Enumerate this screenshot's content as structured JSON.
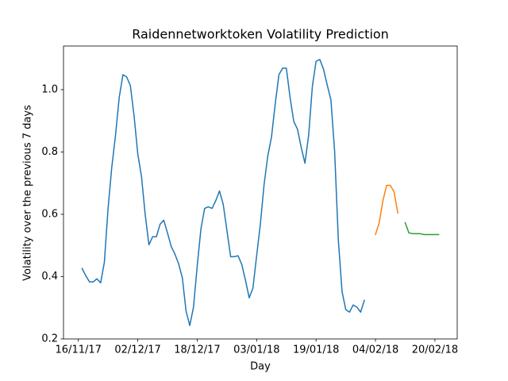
{
  "chart_data": {
    "type": "line",
    "title": "Raidennetworktoken Volatility Prediction",
    "x_label": "Day",
    "y_label": "Volatility over the previous 7 days",
    "xlim": [
      "2017-11-12",
      "2018-02-26"
    ],
    "xticks": [
      {
        "value": "2017-11-16",
        "label": "16/11/17"
      },
      {
        "value": "2017-12-02",
        "label": "02/12/17"
      },
      {
        "value": "2017-12-18",
        "label": "18/12/17"
      },
      {
        "value": "2018-01-03",
        "label": "03/01/18"
      },
      {
        "value": "2018-01-19",
        "label": "19/01/18"
      },
      {
        "value": "2018-02-04",
        "label": "04/02/18"
      },
      {
        "value": "2018-02-20",
        "label": "20/02/18"
      }
    ],
    "ylim": [
      0.2,
      1.14
    ],
    "yticks": [
      0.2,
      0.4,
      0.6,
      0.8,
      {
        "value": 1,
        "label": "1.0"
      }
    ],
    "grid": false,
    "series": [
      {
        "color": "#1f77b4",
        "x": [
          "2017-11-17",
          "2017-11-18",
          "2017-11-19",
          "2017-11-20",
          "2017-11-21",
          "2017-11-22",
          "2017-11-23",
          "2017-11-24",
          "2017-11-25",
          "2017-11-26",
          "2017-11-27",
          "2017-11-28",
          "2017-11-29",
          "2017-11-30",
          "2017-12-01",
          "2017-12-02",
          "2017-12-03",
          "2017-12-04",
          "2017-12-05",
          "2017-12-06",
          "2017-12-07",
          "2017-12-08",
          "2017-12-09",
          "2017-12-10",
          "2017-12-11",
          "2017-12-12",
          "2017-12-13",
          "2017-12-14",
          "2017-12-15",
          "2017-12-16",
          "2017-12-17",
          "2017-12-18",
          "2017-12-19",
          "2017-12-20",
          "2017-12-21",
          "2017-12-22",
          "2017-12-23",
          "2017-12-24",
          "2017-12-25",
          "2017-12-26",
          "2017-12-27",
          "2017-12-28",
          "2017-12-29",
          "2017-12-30",
          "2017-12-31",
          "2018-01-01",
          "2018-01-02",
          "2018-01-03",
          "2018-01-04",
          "2018-01-05",
          "2018-01-06",
          "2018-01-07",
          "2018-01-08",
          "2018-01-09",
          "2018-01-10",
          "2018-01-11",
          "2018-01-12",
          "2018-01-13",
          "2018-01-14",
          "2018-01-15",
          "2018-01-16",
          "2018-01-17",
          "2018-01-18",
          "2018-01-19",
          "2018-01-20",
          "2018-01-21",
          "2018-01-22",
          "2018-01-23",
          "2018-01-24",
          "2018-01-25",
          "2018-01-26",
          "2018-01-27",
          "2018-01-28",
          "2018-01-29",
          "2018-01-30",
          "2018-01-31",
          "2018-02-01"
        ],
        "values": [
          0.426,
          0.403,
          0.383,
          0.383,
          0.393,
          0.38,
          0.446,
          0.619,
          0.751,
          0.853,
          0.975,
          1.048,
          1.041,
          1.013,
          0.916,
          0.794,
          0.721,
          0.599,
          0.502,
          0.528,
          0.528,
          0.568,
          0.581,
          0.54,
          0.497,
          0.472,
          0.441,
          0.396,
          0.289,
          0.243,
          0.302,
          0.434,
          0.553,
          0.619,
          0.624,
          0.619,
          0.644,
          0.675,
          0.632,
          0.548,
          0.464,
          0.464,
          0.467,
          0.439,
          0.388,
          0.332,
          0.363,
          0.467,
          0.568,
          0.695,
          0.787,
          0.848,
          0.954,
          1.048,
          1.069,
          1.069,
          0.975,
          0.898,
          0.873,
          0.815,
          0.764,
          0.853,
          1.01,
          1.091,
          1.097,
          1.066,
          1.015,
          0.967,
          0.802,
          0.517,
          0.352,
          0.294,
          0.286,
          0.309,
          0.302,
          0.286,
          0.324
        ]
      },
      {
        "color": "#ff7f0e",
        "x": [
          "2018-02-04",
          "2018-02-05",
          "2018-02-06",
          "2018-02-07",
          "2018-02-08",
          "2018-02-09",
          "2018-02-10"
        ],
        "values": [
          0.535,
          0.573,
          0.644,
          0.693,
          0.693,
          0.672,
          0.604
        ]
      },
      {
        "color": "#2ca02c",
        "x": [
          "2018-02-12",
          "2018-02-13",
          "2018-02-14",
          "2018-02-15",
          "2018-02-16",
          "2018-02-17",
          "2018-02-18",
          "2018-02-19",
          "2018-02-20",
          "2018-02-21"
        ],
        "values": [
          0.573,
          0.54,
          0.538,
          0.538,
          0.538,
          0.535,
          0.535,
          0.535,
          0.535,
          0.535
        ]
      }
    ]
  }
}
